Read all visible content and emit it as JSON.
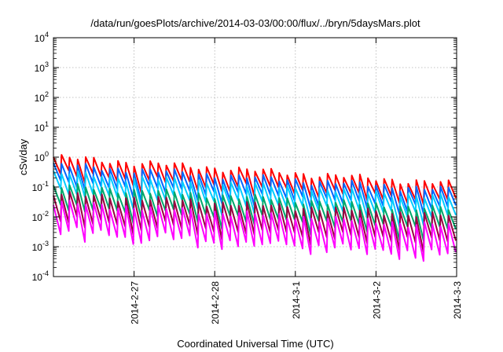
{
  "chart_data": {
    "type": "line",
    "title": "/data/run/goesPlots/archive/2014-03-03/00:00/flux/../bryn/5daysMars.plot",
    "xlabel": "Coordinated Universal Time (UTC)",
    "ylabel": "cSv/day",
    "yscale": "log",
    "ylim_exponents": [
      -4,
      4
    ],
    "ytick_exponents": [
      -4,
      -3,
      -2,
      -1,
      0,
      1,
      2,
      3,
      4
    ],
    "xlim_days": [
      0,
      5
    ],
    "x_start": "2014-2-26",
    "x_end": "2014-3-3",
    "xtick_labels": [
      "2014-2-27",
      "2014-2-28",
      "2014-3-1",
      "2014-3-2",
      "2014-3-3"
    ],
    "xtick_days": [
      1,
      2,
      3,
      4,
      5
    ],
    "grid": true,
    "cycles": 50,
    "series": [
      {
        "color": "#ff0000",
        "peak_start": 1.0,
        "peak_end": 0.13,
        "trough_ratio": 0.27
      },
      {
        "color": "#0066ff",
        "peak_start": 0.55,
        "peak_end": 0.08,
        "trough_ratio": 0.24
      },
      {
        "color": "#00ccff",
        "peak_start": 0.3,
        "peak_end": 0.045,
        "trough_ratio": 0.22
      },
      {
        "color": "#00a86b",
        "peak_start": 0.11,
        "peak_end": 0.018,
        "trough_ratio": 0.2
      },
      {
        "color": "#9a0040",
        "peak_start": 0.06,
        "peak_end": 0.011,
        "trough_ratio": 0.13
      },
      {
        "color": "#ff00ff",
        "peak_start": 0.03,
        "peak_end": 0.005,
        "trough_ratio": 0.11
      }
    ]
  }
}
